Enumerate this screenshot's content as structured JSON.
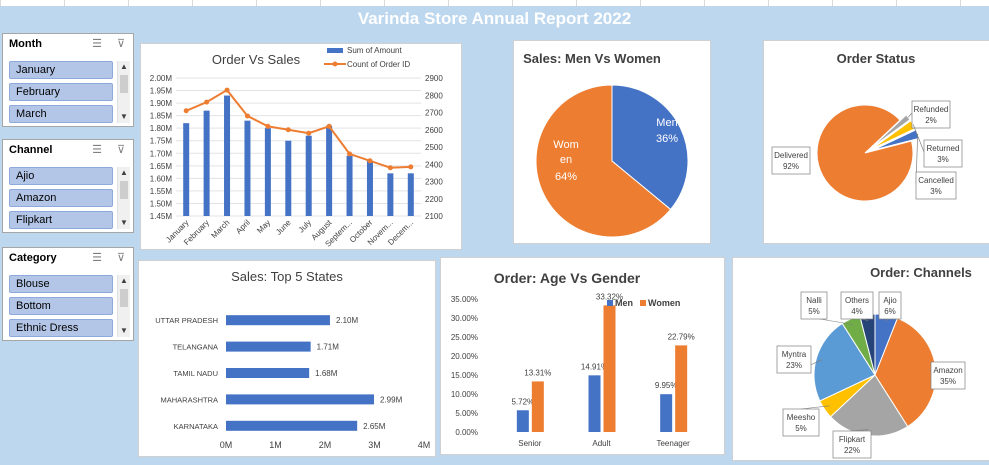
{
  "report_title": "Varinda Store Annual Report 2022",
  "colors": {
    "blue": "#4472c4",
    "orange": "#ed7d31",
    "gray": "#a5a5a5",
    "yellow": "#ffc000",
    "lightblue": "#5b9bd5",
    "green": "#70ad47",
    "navy": "#264478",
    "background": "#bdd7ee"
  },
  "slicers": [
    {
      "title": "Month",
      "items": [
        "January",
        "February",
        "March"
      ]
    },
    {
      "title": "Channel",
      "items": [
        "Ajio",
        "Amazon",
        "Flipkart"
      ]
    },
    {
      "title": "Category",
      "items": [
        "Blouse",
        "Bottom",
        "Ethnic Dress"
      ]
    }
  ],
  "chart_data": [
    {
      "type": "bar+line",
      "title": "Order Vs Sales",
      "categories": [
        "January",
        "February",
        "March",
        "April",
        "May",
        "June",
        "July",
        "August",
        "Septem...",
        "October",
        "Novem...",
        "Decem..."
      ],
      "series": [
        {
          "name": "Sum of Amount",
          "values": [
            1.82,
            1.87,
            1.93,
            1.83,
            1.8,
            1.75,
            1.77,
            1.81,
            1.69,
            1.67,
            1.62,
            1.62
          ],
          "axis": "left",
          "color": "#4472c4"
        },
        {
          "name": "Count of Order ID",
          "values": [
            2710,
            2760,
            2830,
            2680,
            2620,
            2600,
            2580,
            2620,
            2460,
            2420,
            2380,
            2385
          ],
          "axis": "right",
          "color": "#ed7d31"
        }
      ],
      "y_left_ticks": [
        "2.00M",
        "1.95M",
        "1.90M",
        "1.85M",
        "1.80M",
        "1.75M",
        "1.70M",
        "1.65M",
        "1.60M",
        "1.55M",
        "1.50M",
        "1.45M"
      ],
      "y_right_ticks": [
        "2900",
        "2800",
        "2700",
        "2600",
        "2500",
        "2400",
        "2300",
        "2200",
        "2100"
      ],
      "ylim_left": [
        1.45,
        2.0
      ],
      "ylim_right": [
        2100,
        2900
      ],
      "legend": "top-right"
    },
    {
      "type": "pie",
      "title": "Sales: Men Vs Women",
      "slices": [
        {
          "label": "Men",
          "value": 36,
          "text": "36%",
          "color": "#4472c4"
        },
        {
          "label": "Women",
          "label_lines": [
            "Wom",
            "en"
          ],
          "value": 64,
          "text": "64%",
          "color": "#ed7d31"
        }
      ]
    },
    {
      "type": "pie",
      "title": "Order Status",
      "slices": [
        {
          "label": "Delivered",
          "value": 92,
          "text": "92%",
          "color": "#ed7d31"
        },
        {
          "label": "Refunded",
          "value": 2,
          "text": "2%",
          "color": "#a5a5a5"
        },
        {
          "label": "Returned",
          "value": 3,
          "text": "3%",
          "color": "#ffc000"
        },
        {
          "label": "Cancelled",
          "value": 3,
          "text": "3%",
          "color": "#4472c4"
        }
      ]
    },
    {
      "type": "bar",
      "orientation": "horizontal",
      "title": "Sales: Top 5 States",
      "categories": [
        "UTTAR PRADESH",
        "TELANGANA",
        "TAMIL NADU",
        "MAHARASHTRA",
        "KARNATAKA"
      ],
      "values": [
        2.1,
        1.71,
        1.68,
        2.99,
        2.65
      ],
      "value_labels": [
        "2.10M",
        "1.71M",
        "1.68M",
        "2.99M",
        "2.65M"
      ],
      "x_ticks": [
        "0M",
        "1M",
        "2M",
        "3M",
        "4M"
      ],
      "xlim": [
        0,
        4
      ]
    },
    {
      "type": "bar",
      "title": "Order: Age Vs Gender",
      "categories": [
        "Senior",
        "Adult",
        "Teenager"
      ],
      "series": [
        {
          "name": "Men",
          "values": [
            5.72,
            14.91,
            9.95
          ],
          "labels": [
            "5.72%",
            "14.91%",
            "9.95%"
          ],
          "color": "#4472c4"
        },
        {
          "name": "Women",
          "values": [
            13.31,
            33.32,
            22.79
          ],
          "labels": [
            "13.31%",
            "33.32%",
            "22.79%"
          ],
          "color": "#ed7d31"
        }
      ],
      "y_ticks": [
        "35.00%",
        "30.00%",
        "25.00%",
        "20.00%",
        "15.00%",
        "10.00%",
        "5.00%",
        "0.00%"
      ],
      "ylim": [
        0,
        35
      ],
      "legend": "top-right"
    },
    {
      "type": "pie",
      "title": "Order: Channels",
      "slices": [
        {
          "label": "Ajio",
          "value": 6,
          "text": "6%",
          "color": "#4472c4"
        },
        {
          "label": "Amazon",
          "value": 35,
          "text": "35%",
          "color": "#ed7d31"
        },
        {
          "label": "Flipkart",
          "value": 22,
          "text": "22%",
          "color": "#a5a5a5"
        },
        {
          "label": "Meesho",
          "value": 5,
          "text": "5%",
          "color": "#ffc000"
        },
        {
          "label": "Myntra",
          "value": 23,
          "text": "23%",
          "color": "#5b9bd5"
        },
        {
          "label": "Nalli",
          "value": 5,
          "text": "5%",
          "color": "#70ad47"
        },
        {
          "label": "Others",
          "value": 4,
          "text": "4%",
          "color": "#264478"
        }
      ]
    }
  ]
}
